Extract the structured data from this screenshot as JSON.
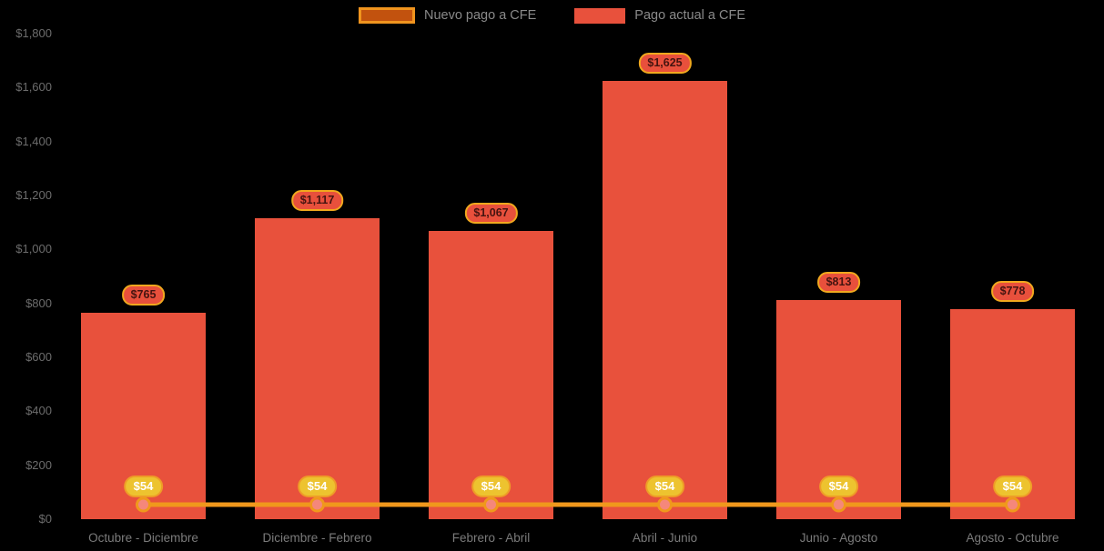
{
  "colors": {
    "background": "#000000",
    "bar": "#e8513c",
    "line": "#f0981c",
    "marker_fill": "#f5877b",
    "bar_pill_bg": "#e8503c",
    "bar_pill_border": "#f0a81e",
    "bar_pill_text": "#441410",
    "line_pill_bg": "#edc32f",
    "line_pill_border": "#ee9d27",
    "line_pill_text": "#ffffff",
    "axis_text": "#6c6c6c",
    "legend_text": "#8a8a8a"
  },
  "chart_data": {
    "type": "bar",
    "title": "",
    "xlabel": "",
    "ylabel": "",
    "categories": [
      "Octubre - Diciembre",
      "Diciembre - Febrero",
      "Febrero - Abril",
      "Abril - Junio",
      "Junio - Agosto",
      "Agosto - Octubre"
    ],
    "series": [
      {
        "name": "Nuevo pago a CFE",
        "type": "line",
        "color": "#f0981c",
        "values": [
          54,
          54,
          54,
          54,
          54,
          54
        ],
        "labels": [
          "$54",
          "$54",
          "$54",
          "$54",
          "$54",
          "$54"
        ]
      },
      {
        "name": "Pago actual a CFE",
        "type": "bar",
        "color": "#e8513c",
        "values": [
          765,
          1117,
          1067,
          1625,
          813,
          778
        ],
        "labels": [
          "$765",
          "$1,117",
          "$1,067",
          "$1,625",
          "$813",
          "$778"
        ]
      }
    ],
    "ylim": [
      0,
      1800
    ],
    "ytick_step": 200,
    "ytick_labels": [
      "$0",
      "$200",
      "$400",
      "$600",
      "$800",
      "$1,000",
      "$1,200",
      "$1,400",
      "$1,600",
      "$1,800"
    ],
    "grid": false,
    "legend_position": "top-center"
  }
}
